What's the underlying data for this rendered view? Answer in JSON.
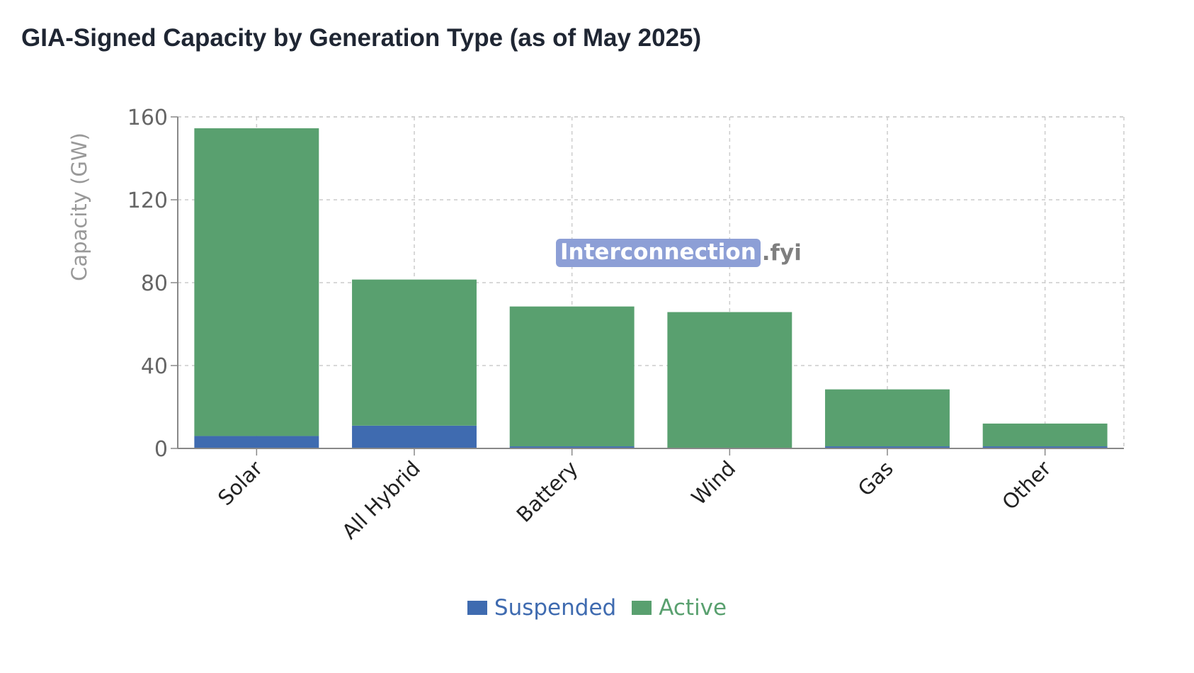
{
  "title": "GIA-Signed Capacity by Generation Type (as of May 2025)",
  "watermark": {
    "highlight": "Interconnection",
    "rest": ".fyi"
  },
  "chart_data": {
    "type": "bar",
    "stacked": true,
    "categories": [
      "Solar",
      "All Hybrid",
      "Battery",
      "Wind",
      "Gas",
      "Other"
    ],
    "series": [
      {
        "name": "Suspended",
        "color": "#3f6bb0",
        "values": [
          6,
          11,
          1,
          0.3,
          1,
          1
        ]
      },
      {
        "name": "Active",
        "color": "#59a06f",
        "values": [
          148.5,
          70.5,
          67.5,
          65.5,
          27.5,
          11
        ]
      }
    ],
    "ylabel": "Capacity (GW)",
    "xlabel": "",
    "ylim": [
      0,
      160
    ],
    "yticks": [
      0,
      40,
      80,
      120,
      160
    ],
    "grid": true,
    "legend_position": "bottom"
  }
}
